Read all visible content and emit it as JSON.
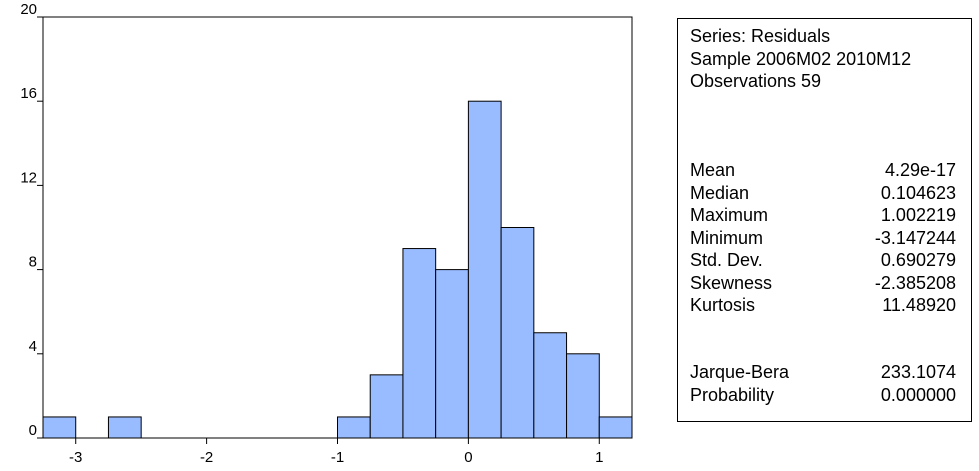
{
  "chart_data": {
    "type": "bar",
    "histogram": true,
    "bins": [
      {
        "x0": -3.25,
        "x1": -3.0,
        "count": 1
      },
      {
        "x0": -3.0,
        "x1": -2.75,
        "count": 0
      },
      {
        "x0": -2.75,
        "x1": -2.5,
        "count": 1
      },
      {
        "x0": -2.5,
        "x1": -2.25,
        "count": 0
      },
      {
        "x0": -2.25,
        "x1": -2.0,
        "count": 0
      },
      {
        "x0": -2.0,
        "x1": -1.75,
        "count": 0
      },
      {
        "x0": -1.75,
        "x1": -1.5,
        "count": 0
      },
      {
        "x0": -1.5,
        "x1": -1.25,
        "count": 0
      },
      {
        "x0": -1.25,
        "x1": -1.0,
        "count": 0
      },
      {
        "x0": -1.0,
        "x1": -0.75,
        "count": 1
      },
      {
        "x0": -0.75,
        "x1": -0.5,
        "count": 3
      },
      {
        "x0": -0.5,
        "x1": -0.25,
        "count": 9
      },
      {
        "x0": -0.25,
        "x1": 0.0,
        "count": 8
      },
      {
        "x0": 0.0,
        "x1": 0.25,
        "count": 16
      },
      {
        "x0": 0.25,
        "x1": 0.5,
        "count": 10
      },
      {
        "x0": 0.5,
        "x1": 0.75,
        "count": 5
      },
      {
        "x0": 0.75,
        "x1": 1.0,
        "count": 4
      },
      {
        "x0": 1.0,
        "x1": 1.25,
        "count": 1
      }
    ],
    "xlim": [
      -3.25,
      1.25
    ],
    "ylim": [
      0,
      20
    ],
    "x_ticks": [
      {
        "value": -3,
        "label": "-3"
      },
      {
        "value": -2,
        "label": "-2"
      },
      {
        "value": -1,
        "label": "-1"
      },
      {
        "value": 0,
        "label": "0"
      },
      {
        "value": 1,
        "label": "1"
      }
    ],
    "y_ticks": [
      {
        "value": 0,
        "label": "0"
      },
      {
        "value": 4,
        "label": "4"
      },
      {
        "value": 8,
        "label": "8"
      },
      {
        "value": 12,
        "label": "12"
      },
      {
        "value": 16,
        "label": "16"
      },
      {
        "value": 20,
        "label": "20"
      }
    ],
    "grid": false,
    "bar_color": "#99bbff",
    "bar_edge_color": "#000000"
  },
  "stats": {
    "series": "Series: Residuals",
    "sample": "Sample 2006M02 2010M12",
    "observations": "Observations 59",
    "rows": [
      {
        "label": "Mean",
        "value": "4.29e-17"
      },
      {
        "label": "Median",
        "value": "0.104623"
      },
      {
        "label": "Maximum",
        "value": "1.002219"
      },
      {
        "label": "Minimum",
        "value": "-3.147244"
      },
      {
        "label": "Std. Dev.",
        "value": "0.690279"
      },
      {
        "label": "Skewness",
        "value": "-2.385208"
      },
      {
        "label": "Kurtosis",
        "value": "11.48920"
      },
      {
        "label": "Jarque-Bera",
        "value": "233.1074"
      },
      {
        "label": "Probability",
        "value": "0.000000"
      }
    ]
  }
}
